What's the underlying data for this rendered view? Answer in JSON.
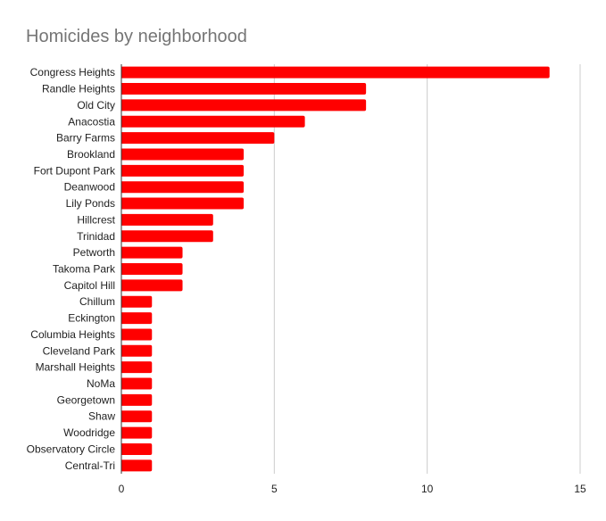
{
  "chart_data": {
    "type": "bar",
    "orientation": "horizontal",
    "title": "Homicides by neighborhood",
    "xlabel": "",
    "ylabel": "",
    "xlim": [
      0,
      15
    ],
    "xticks": [
      0,
      5,
      10,
      15
    ],
    "grid": true,
    "bar_color": "#ff0000",
    "categories": [
      "Congress Heights",
      "Randle Heights",
      "Old City",
      "Anacostia",
      "Barry Farms",
      "Brookland",
      "Fort Dupont Park",
      "Deanwood",
      "Lily Ponds",
      "Hillcrest",
      "Trinidad",
      "Petworth",
      "Takoma Park",
      "Capitol Hill",
      "Chillum",
      "Eckington",
      "Columbia Heights",
      "Cleveland Park",
      "Marshall Heights",
      "NoMa",
      "Georgetown",
      "Shaw",
      "Woodridge",
      "Observatory Circle",
      "Central-Tri"
    ],
    "values": [
      14,
      8,
      8,
      6,
      5,
      4,
      4,
      4,
      4,
      3,
      3,
      2,
      2,
      2,
      1,
      1,
      1,
      1,
      1,
      1,
      1,
      1,
      1,
      1,
      1
    ]
  }
}
